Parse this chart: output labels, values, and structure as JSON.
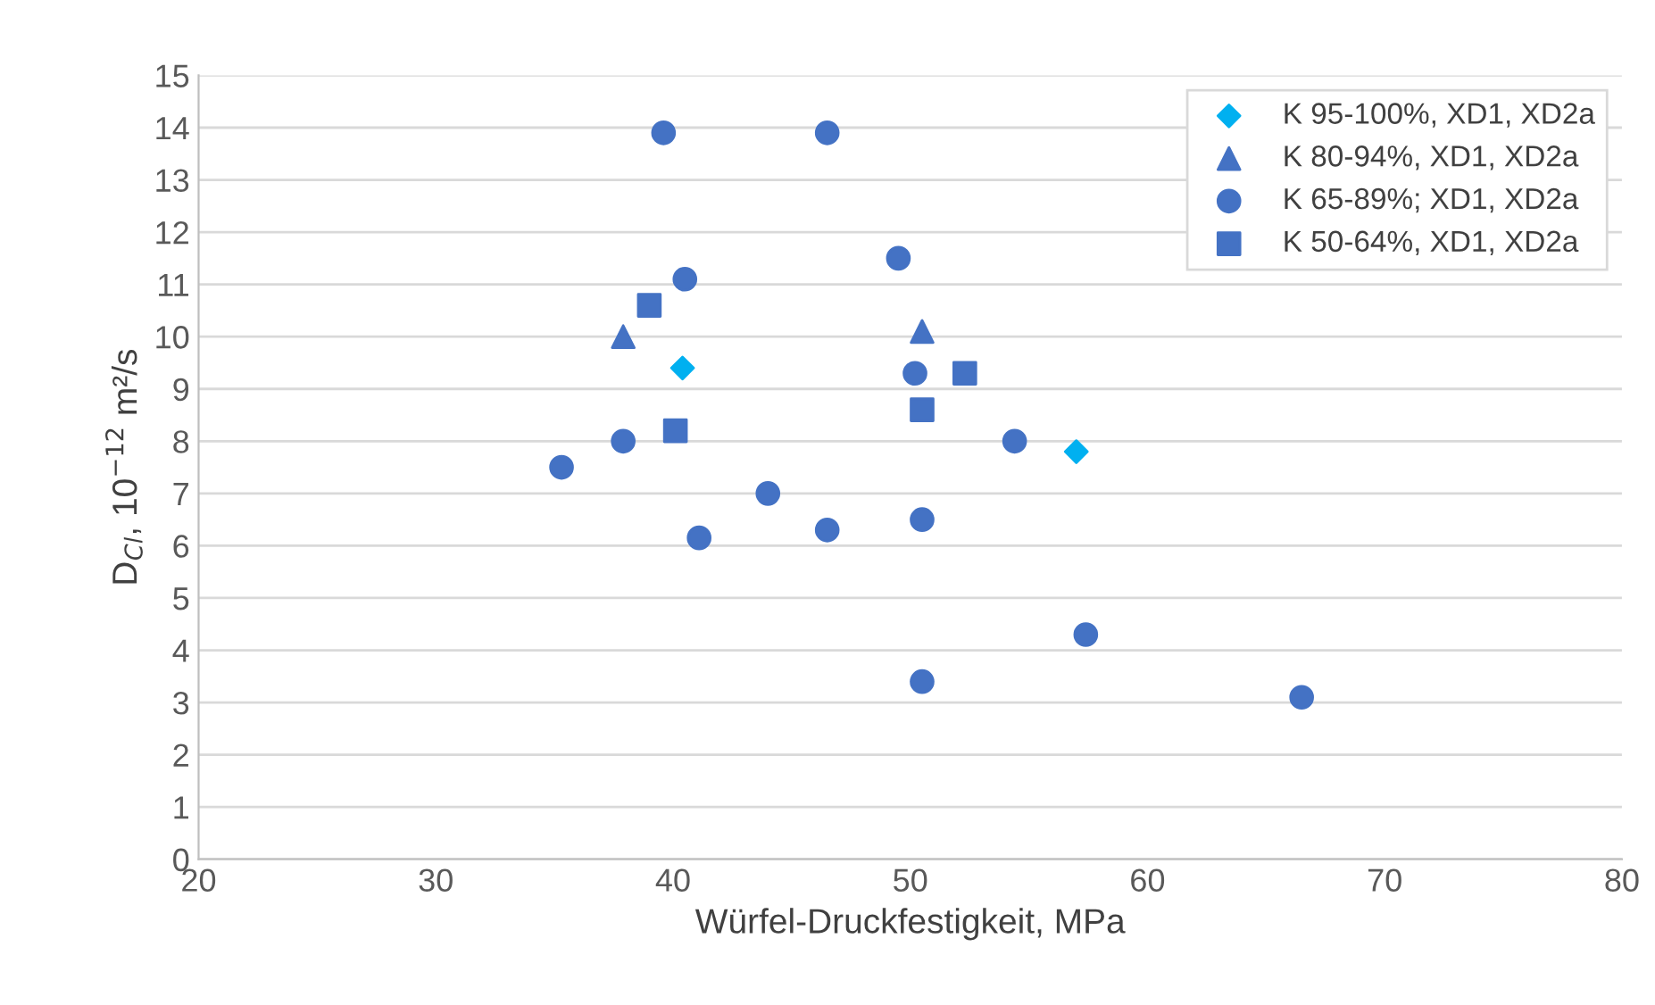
{
  "chart_data": {
    "type": "scatter",
    "xlabel": "Würfel-Druckfestigkeit, MPa",
    "ylabel": "D$_{Cl}$, 10$^{−12}$ m²/s",
    "xlim": [
      20,
      80
    ],
    "xticks": [
      20,
      30,
      40,
      50,
      60,
      70,
      80
    ],
    "ylim": [
      0,
      15
    ],
    "yticks": [
      0,
      1,
      2,
      3,
      4,
      5,
      6,
      7,
      8,
      9,
      10,
      11,
      12,
      13,
      14,
      15
    ],
    "grid": "y",
    "legend": "top right",
    "series": [
      {
        "name": "K 95-100%, XD1, XD2a",
        "color": "#00b0f0",
        "marker": "diamond",
        "x": [
          40.4,
          57.0
        ],
        "values": [
          9.4,
          7.8
        ]
      },
      {
        "name": "K 80-94%, XD1, XD2a",
        "color": "#4472c4",
        "marker": "triangle",
        "x": [
          37.9,
          50.5
        ],
        "values": [
          10.0,
          10.1
        ]
      },
      {
        "name": "K 65-89%; XD1, XD2a",
        "color": "#4472c4",
        "marker": "circle",
        "x": [
          39.6,
          46.5,
          40.5,
          49.5,
          50.2,
          54.4,
          37.9,
          35.3,
          44.0,
          46.5,
          41.1,
          50.5,
          57.4,
          50.5,
          66.5
        ],
        "values": [
          13.9,
          13.9,
          11.1,
          11.5,
          9.3,
          8.0,
          8.0,
          7.5,
          7.0,
          6.3,
          6.15,
          6.5,
          4.3,
          3.4,
          3.1
        ]
      },
      {
        "name": "K 50-64%, XD1, XD2a",
        "color": "#4472c4",
        "marker": "square",
        "x": [
          39.0,
          40.1,
          50.5,
          52.3
        ],
        "values": [
          10.6,
          8.2,
          8.6,
          9.3
        ]
      }
    ]
  }
}
